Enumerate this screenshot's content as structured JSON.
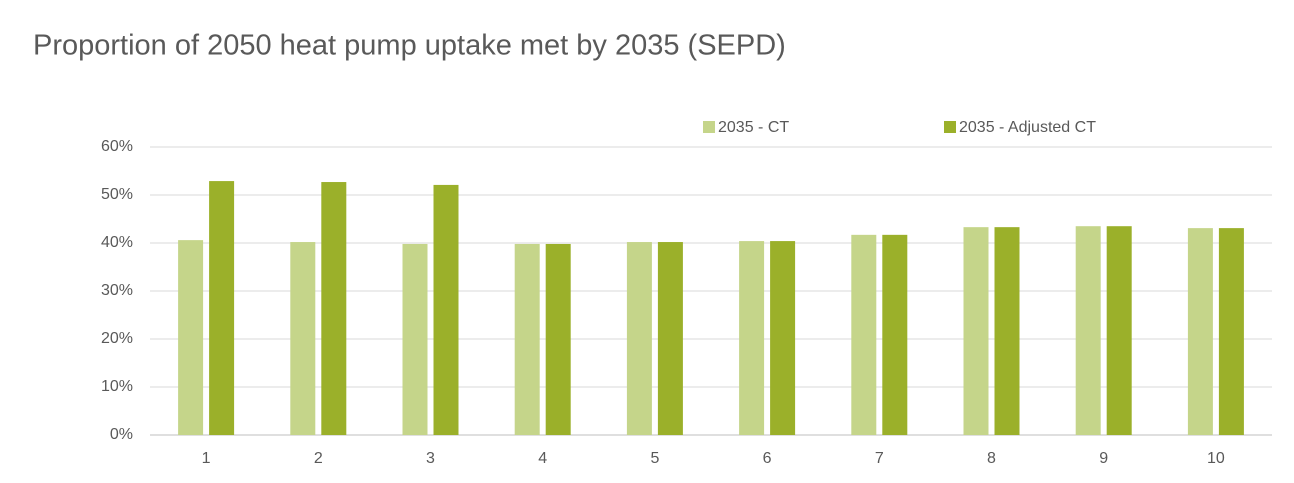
{
  "chart_data": {
    "type": "bar",
    "title": "Proportion of 2050 heat pump uptake met by 2035 (SEPD)",
    "categories": [
      "1",
      "2",
      "3",
      "4",
      "5",
      "6",
      "7",
      "8",
      "9",
      "10"
    ],
    "series": [
      {
        "name": "2035 - CT",
        "color": "#c5d58a",
        "values": [
          40.6,
          40.2,
          39.8,
          39.8,
          40.2,
          40.4,
          41.7,
          43.3,
          43.5,
          43.1
        ]
      },
      {
        "name": "2035 - Adjusted CT",
        "color": "#9bb02a",
        "values": [
          52.9,
          52.7,
          52.1,
          39.8,
          40.2,
          40.4,
          41.7,
          43.3,
          43.5,
          43.1
        ]
      }
    ],
    "ylim": [
      0,
      60
    ],
    "yticks": [
      {
        "value": 0,
        "label": "0%"
      },
      {
        "value": 10,
        "label": "10%"
      },
      {
        "value": 20,
        "label": "20%"
      },
      {
        "value": 30,
        "label": "30%"
      },
      {
        "value": 40,
        "label": "40%"
      },
      {
        "value": 50,
        "label": "50%"
      },
      {
        "value": 60,
        "label": "60%"
      }
    ],
    "grid": true,
    "legend": "top-right"
  }
}
